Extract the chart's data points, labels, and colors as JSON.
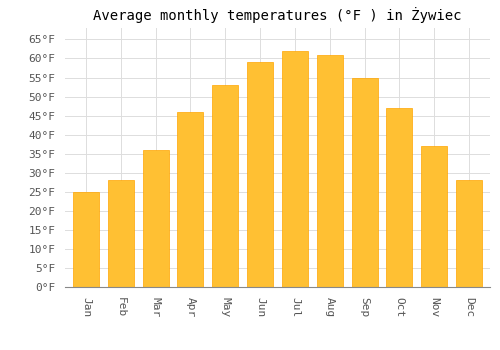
{
  "title": "Average monthly temperatures (°F ) in Żywiec",
  "months": [
    "Jan",
    "Feb",
    "Mar",
    "Apr",
    "May",
    "Jun",
    "Jul",
    "Aug",
    "Sep",
    "Oct",
    "Nov",
    "Dec"
  ],
  "values": [
    25,
    28,
    36,
    46,
    53,
    59,
    62,
    61,
    55,
    47,
    37,
    28
  ],
  "bar_color": "#FFC033",
  "bar_edge_color": "#FFA500",
  "background_color": "#FFFFFF",
  "plot_bg_color": "#FAFAF0",
  "grid_color": "#DDDDDD",
  "ylim": [
    0,
    68
  ],
  "yticks": [
    0,
    5,
    10,
    15,
    20,
    25,
    30,
    35,
    40,
    45,
    50,
    55,
    60,
    65
  ],
  "title_fontsize": 10,
  "tick_fontsize": 8,
  "font_family": "monospace",
  "bar_width": 0.75
}
